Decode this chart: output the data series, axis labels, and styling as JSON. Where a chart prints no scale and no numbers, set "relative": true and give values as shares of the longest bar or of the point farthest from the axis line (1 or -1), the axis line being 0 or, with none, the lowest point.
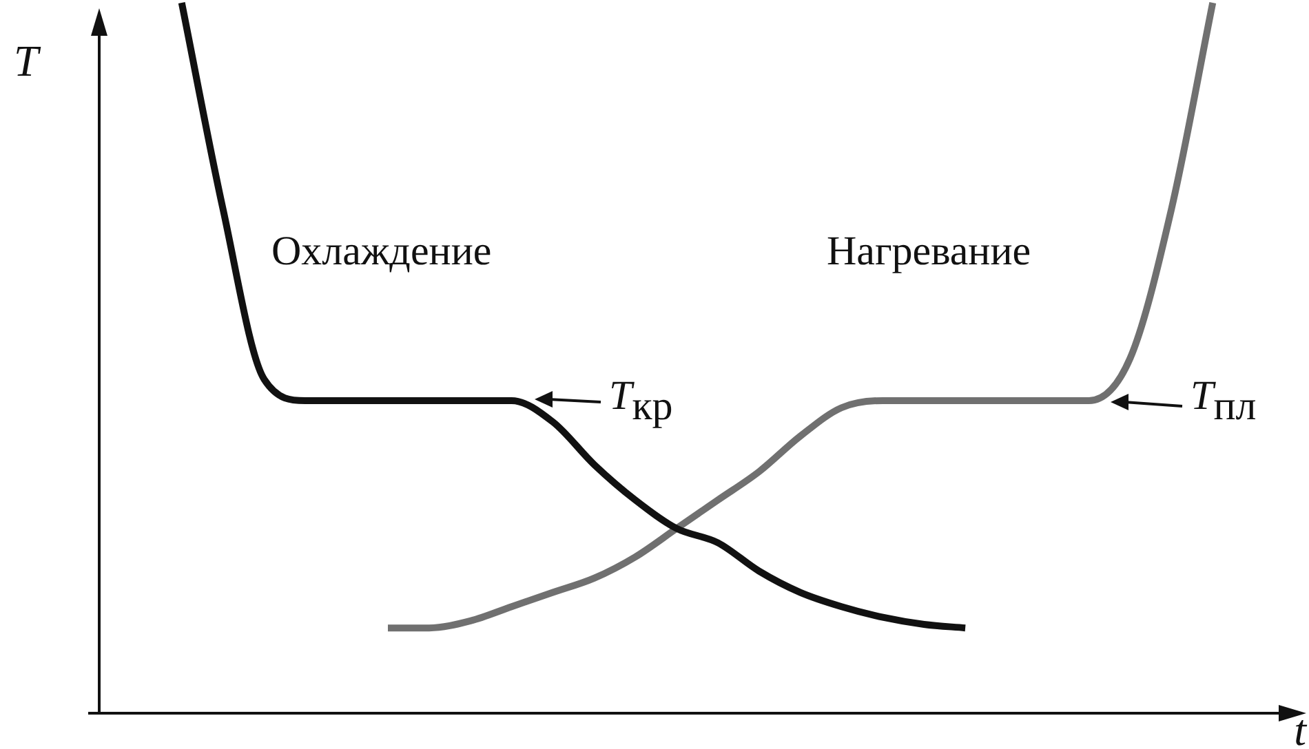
{
  "chart_data": {
    "type": "line",
    "relative": true,
    "xlabel": "t",
    "ylabel": "T",
    "marker": "none",
    "line_style": "solid",
    "categories": [
      null,
      null,
      null,
      null,
      null,
      null,
      null,
      null,
      null,
      null,
      null,
      null,
      null,
      null,
      null,
      null,
      null,
      null,
      null,
      null,
      null,
      null,
      null,
      null,
      null,
      null,
      null,
      null,
      null,
      null
    ],
    "series": [
      {
        "color": "#111111",
        "values": [
          null,
          null,
          1.0,
          0.71,
          0.47,
          0.44,
          0.44,
          0.44,
          0.44,
          0.44,
          0.44,
          0.41,
          0.35,
          0.3,
          0.26,
          0.24,
          0.2,
          0.17,
          0.15,
          0.135,
          0.125,
          0.12,
          null,
          null,
          null,
          null,
          null,
          null,
          null,
          null
        ]
      },
      {
        "color": "#707070",
        "values": [
          null,
          null,
          null,
          null,
          null,
          null,
          null,
          0.12,
          0.12,
          0.13,
          0.15,
          0.17,
          0.19,
          0.22,
          0.26,
          0.3,
          0.34,
          0.39,
          0.43,
          0.44,
          0.44,
          0.44,
          0.44,
          0.44,
          0.44,
          0.5,
          0.71,
          1.0,
          null,
          null
        ]
      }
    ],
    "annotations": [
      "Охлаждение",
      "Нагревание",
      "T$_{кр}$",
      "T$_{пл}$"
    ]
  }
}
